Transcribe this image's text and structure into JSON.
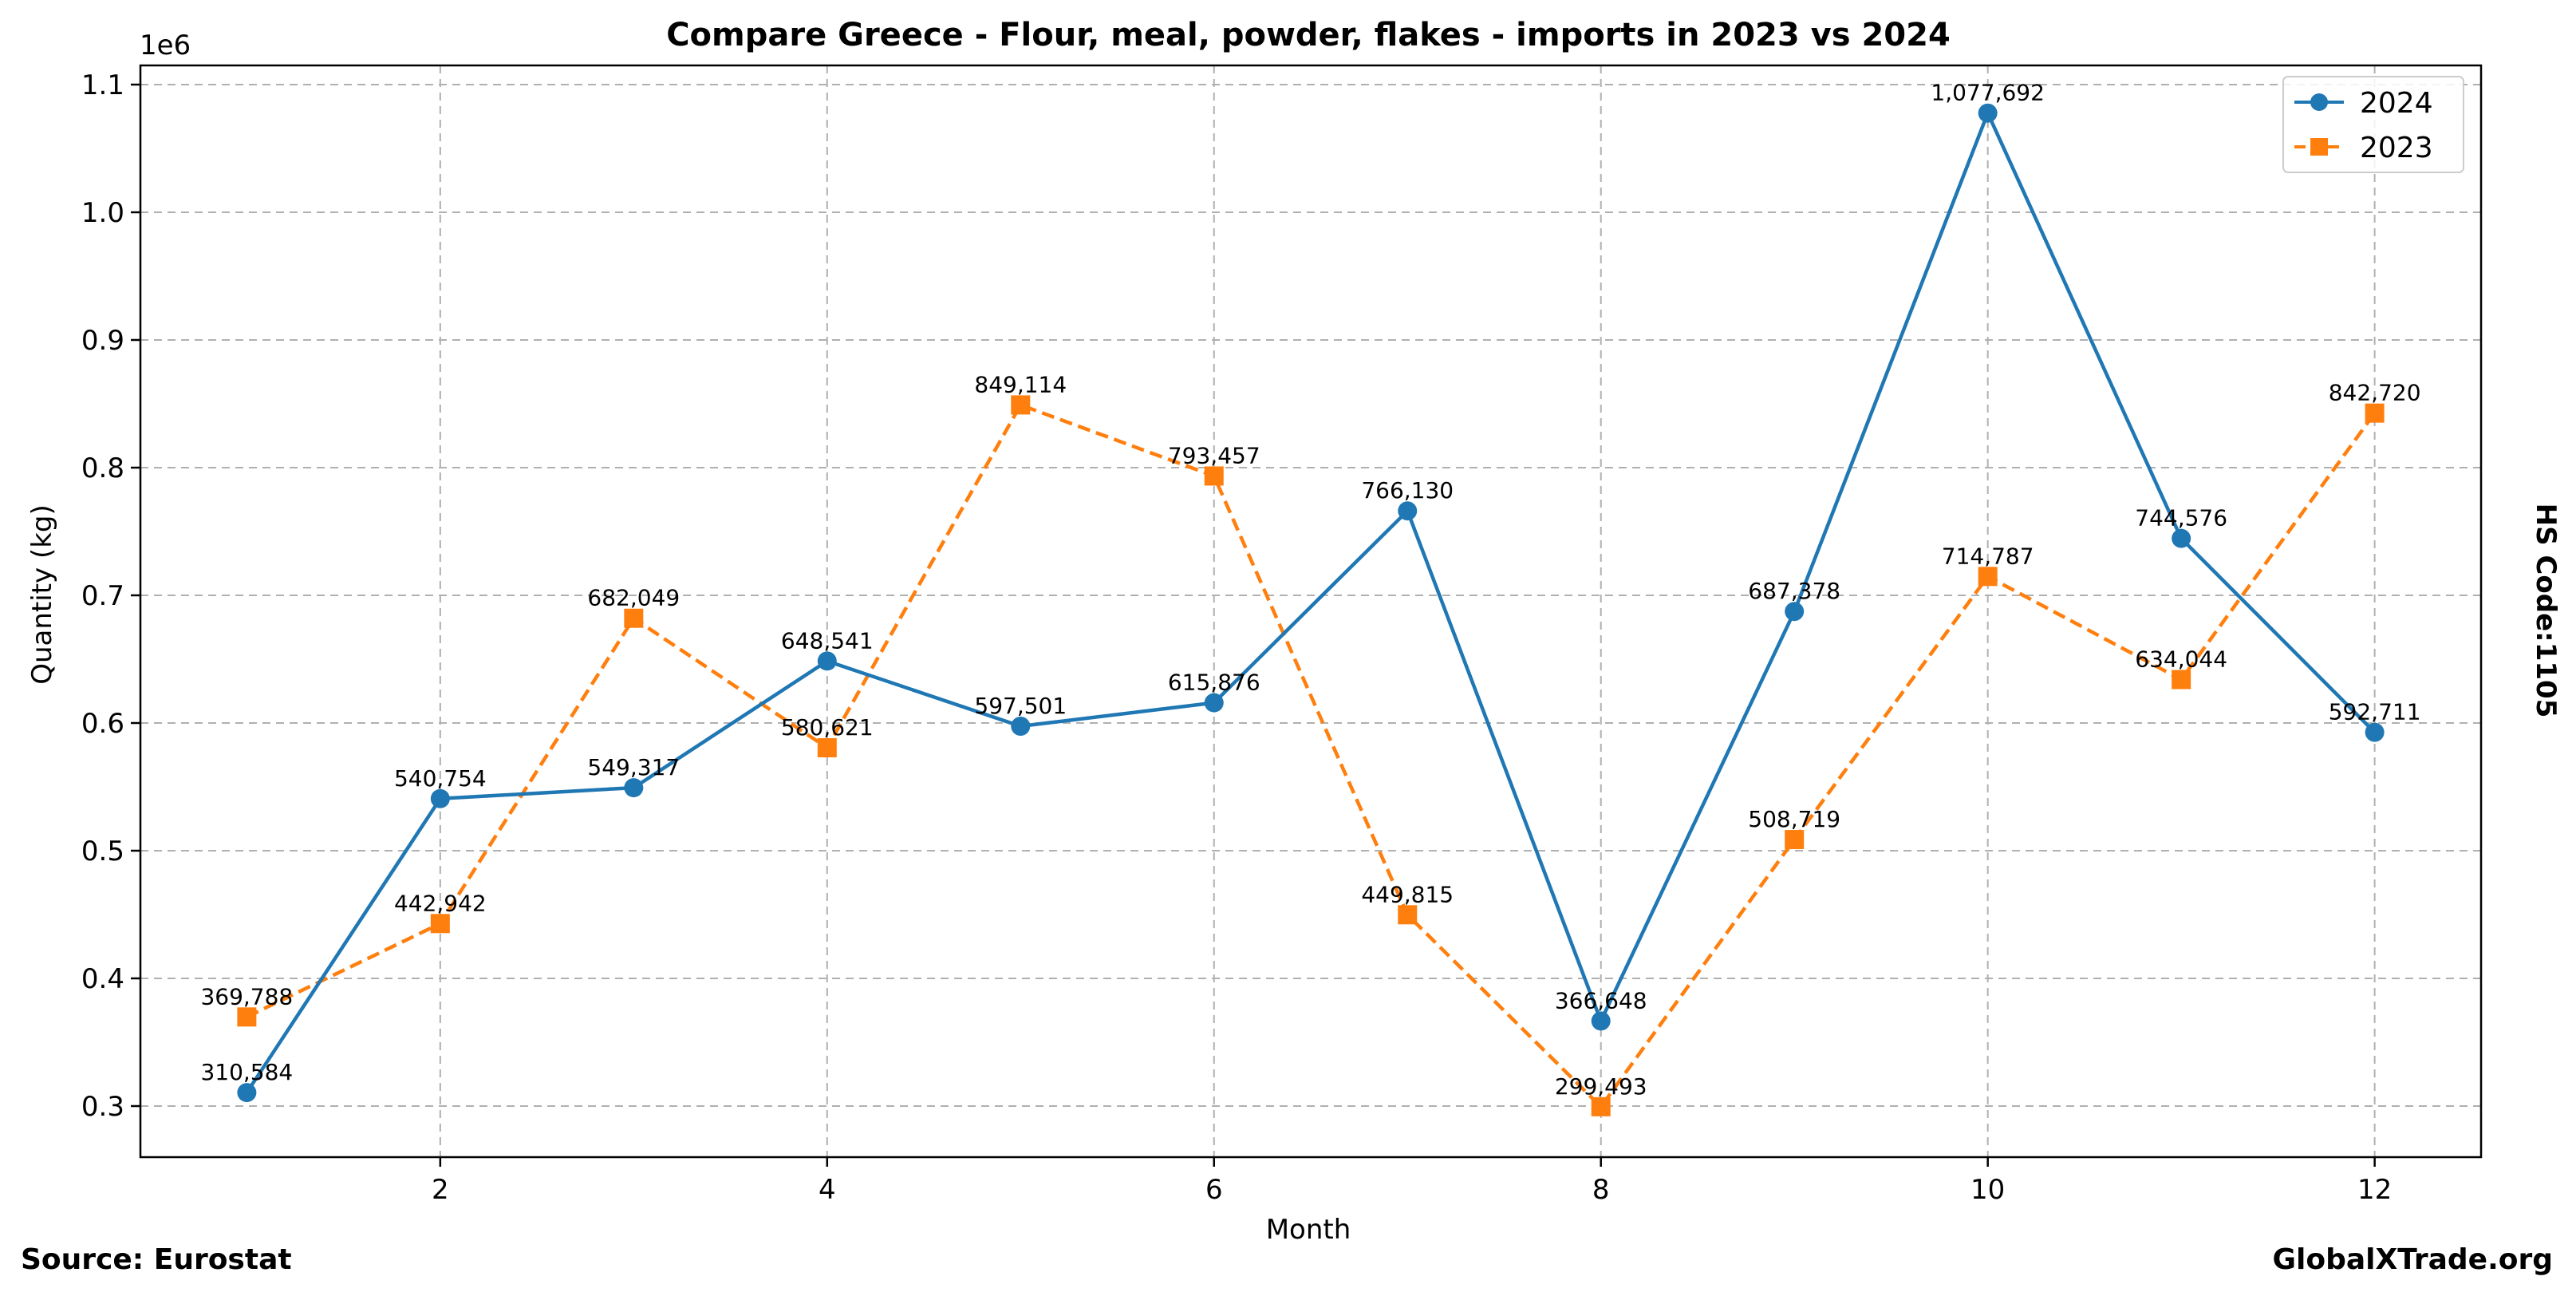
{
  "chart_data": {
    "type": "line",
    "title": "Compare Greece - Flour, meal, powder, flakes - imports in 2023 vs 2024",
    "xlabel": "Month",
    "ylabel": "Quantity (kg)",
    "y_offset_label": "1e6",
    "x": [
      1,
      2,
      3,
      4,
      5,
      6,
      7,
      8,
      9,
      10,
      11,
      12
    ],
    "xlim": [
      0.45,
      12.55
    ],
    "ylim": [
      260000,
      1115000
    ],
    "x_ticks": [
      2,
      4,
      6,
      8,
      10,
      12
    ],
    "x_tick_labels": [
      "2",
      "4",
      "6",
      "8",
      "10",
      "12"
    ],
    "y_ticks": [
      300000,
      400000,
      500000,
      600000,
      700000,
      800000,
      900000,
      1000000,
      1100000
    ],
    "y_tick_labels": [
      "0.3",
      "0.4",
      "0.5",
      "0.6",
      "0.7",
      "0.8",
      "0.9",
      "1.0",
      "1.1"
    ],
    "grid": true,
    "legend_position": "top-right",
    "series": [
      {
        "name": "2024",
        "color": "#1f77b4",
        "line_style": "solid",
        "marker": "circle",
        "values": [
          310584,
          540754,
          549317,
          648541,
          597501,
          615876,
          766130,
          366648,
          687378,
          1077692,
          744576,
          592711
        ],
        "labels": [
          "310,584",
          "540,754",
          "549,317",
          "648,541",
          "597,501",
          "615,876",
          "766,130",
          "366,648",
          "687,378",
          "1,077,692",
          "744,576",
          "592,711"
        ]
      },
      {
        "name": "2023",
        "color": "#ff7f0e",
        "line_style": "dashed",
        "marker": "square",
        "values": [
          369788,
          442942,
          682049,
          580621,
          849114,
          793457,
          449815,
          299493,
          508719,
          714787,
          634044,
          842720
        ],
        "labels": [
          "369,788",
          "442,942",
          "682,049",
          "580,621",
          "849,114",
          "793,457",
          "449,815",
          "299,493",
          "508,719",
          "714,787",
          "634,044",
          "842,720"
        ]
      }
    ]
  },
  "side_label": "HS Code:1105",
  "footer": {
    "source": "Source: Eurostat",
    "brand": "GlobalXTrade.org"
  }
}
